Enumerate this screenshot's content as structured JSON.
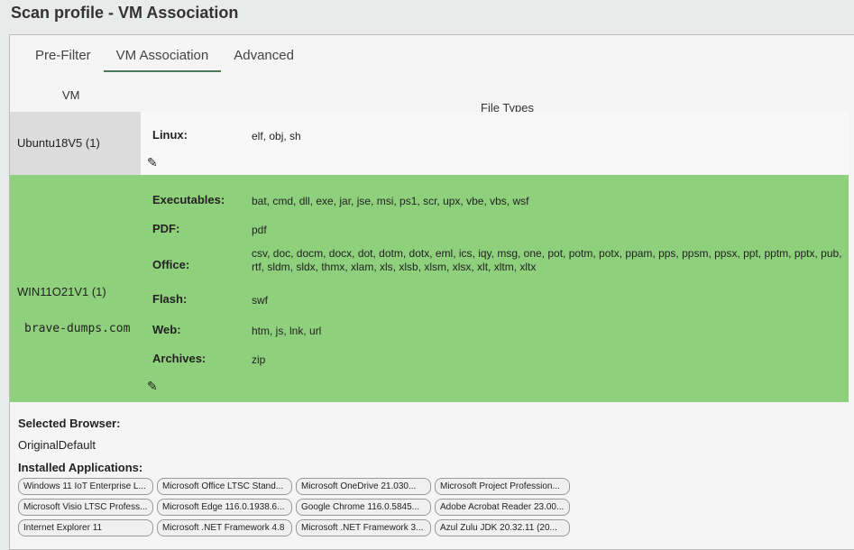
{
  "title": "Scan profile - VM Association",
  "tabs": [
    {
      "label": "Pre-Filter"
    },
    {
      "label": "VM Association",
      "active": true
    },
    {
      "label": "Advanced"
    }
  ],
  "table": {
    "col_vm": "VM",
    "col_filetypes": "File Types",
    "rows": [
      {
        "vm": "Ubuntu18V5 (1)",
        "types": [
          {
            "label": "Linux:",
            "value": "elf, obj, sh"
          }
        ]
      },
      {
        "vm": "WIN11O21V1 (1)",
        "highlight": "#8fd07c",
        "types": [
          {
            "label": "Executables:",
            "value": "bat, cmd, dll, exe, jar, jse, msi, ps1, scr, upx, vbe, vbs, wsf"
          },
          {
            "label": "PDF:",
            "value": "pdf"
          },
          {
            "label": "Office:",
            "value": "csv, doc, docm, docx, dot, dotm, dotx, eml, ics, iqy, msg, one, pot, potm, potx, ppam, pps, ppsm, ppsx, ppt, pptm, pptx, pub, rtf, sldm, sldx, thmx, xlam, xls, xlsb, xlsm, xlsx, xlt, xltm, xltx"
          },
          {
            "label": "Flash:",
            "value": "swf"
          },
          {
            "label": "Web:",
            "value": "htm, js, lnk, url"
          },
          {
            "label": "Archives:",
            "value": "zip"
          }
        ]
      }
    ]
  },
  "watermark": "brave-dumps.com",
  "selected_browser_label": "Selected Browser:",
  "selected_browser": "OriginalDefault",
  "installed_label": "Installed Applications:",
  "apps": [
    "Windows 11 IoT Enterprise L...",
    "Microsoft Office LTSC Stand...",
    "Microsoft OneDrive 21.030...",
    "Microsoft Project Profession...",
    "Microsoft Visio LTSC Profess...",
    "Microsoft Edge 116.0.1938.6...",
    "Google Chrome 116.0.5845...",
    "Adobe Acrobat Reader 23.00...",
    "Internet Explorer 11",
    "Microsoft .NET Framework 4.8",
    "Microsoft .NET Framework 3...",
    "Azul Zulu JDK 20.32.11 (20..."
  ]
}
